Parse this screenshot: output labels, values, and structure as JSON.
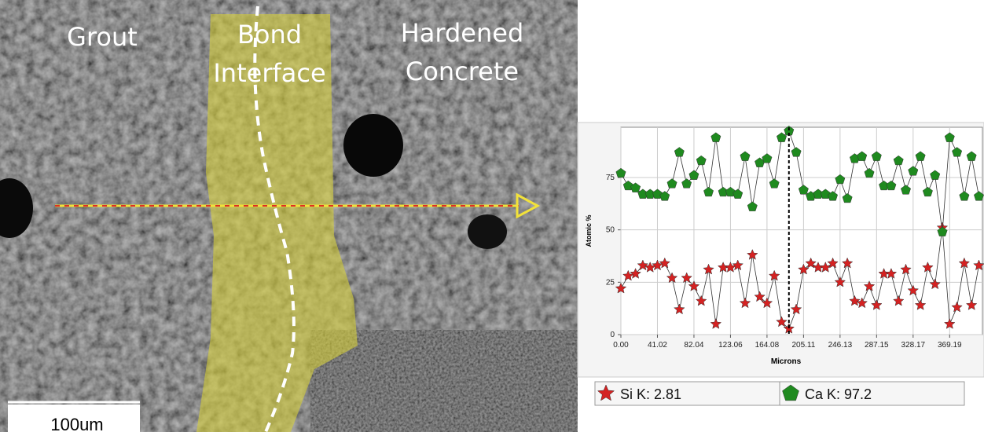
{
  "image": {
    "labels": {
      "grout": "Grout",
      "bond": [
        "Bond",
        "Interface"
      ],
      "hardened": [
        "Hardened",
        "Concrete"
      ]
    },
    "scale_bar": "100um"
  },
  "chart_data": {
    "type": "line",
    "x_label": "Microns",
    "y_label": "Atomic %",
    "x": [
      0,
      8.2,
      16.41,
      24.61,
      32.82,
      41.02,
      49.22,
      57.43,
      65.63,
      73.84,
      82.04,
      90.24,
      98.45,
      106.65,
      114.86,
      123.06,
      131.26,
      139.47,
      147.67,
      155.88,
      164.08,
      172.28,
      180.49,
      188.69,
      196.9,
      205.1,
      213.3,
      221.51,
      229.71,
      237.92,
      246.12,
      254.32,
      262.53,
      270.73,
      278.94,
      287.14,
      295.34,
      303.55,
      311.75,
      319.96,
      328.16,
      336.36,
      344.57,
      352.77,
      360.98,
      369.18,
      377.38,
      385.59,
      393.79,
      402.0
    ],
    "series": [
      {
        "name": "Si K: 2.81",
        "color": "#d42222",
        "marker": "star",
        "values": [
          22,
          28,
          29,
          33,
          32,
          33,
          34,
          27,
          12,
          27,
          23,
          16,
          31,
          5,
          32,
          32,
          33,
          15,
          38,
          18,
          15,
          28,
          6,
          2.81,
          12,
          31,
          34,
          32,
          32,
          34,
          25,
          34,
          16,
          15,
          23,
          14,
          29,
          29,
          16,
          31,
          21,
          14,
          32,
          24,
          51,
          5,
          13,
          34,
          14,
          33
        ]
      },
      {
        "name": "Ca K: 97.2",
        "color": "#1f8a1f",
        "marker": "pentagon",
        "values": [
          77,
          71,
          70,
          67,
          67,
          67,
          66,
          72,
          87,
          72,
          76,
          83,
          68,
          94,
          68,
          68,
          67,
          85,
          61,
          82,
          84,
          72,
          94,
          97.2,
          87,
          69,
          66,
          67,
          67,
          66,
          74,
          65,
          84,
          85,
          77,
          85,
          71,
          71,
          83,
          69,
          78,
          85,
          68,
          76,
          49,
          94,
          87,
          66,
          85,
          66
        ]
      }
    ],
    "cursor_x": 188.69,
    "xlim": [
      0,
      406
    ],
    "ylim": [
      0,
      99
    ],
    "xticks": [
      {
        "value": 0,
        "label": "0.00"
      },
      41.02,
      82.04,
      123.06,
      164.08,
      205.11,
      246.13,
      287.15,
      328.17,
      369.19
    ],
    "yticks": [
      0,
      25,
      50,
      75
    ],
    "grid": true
  }
}
